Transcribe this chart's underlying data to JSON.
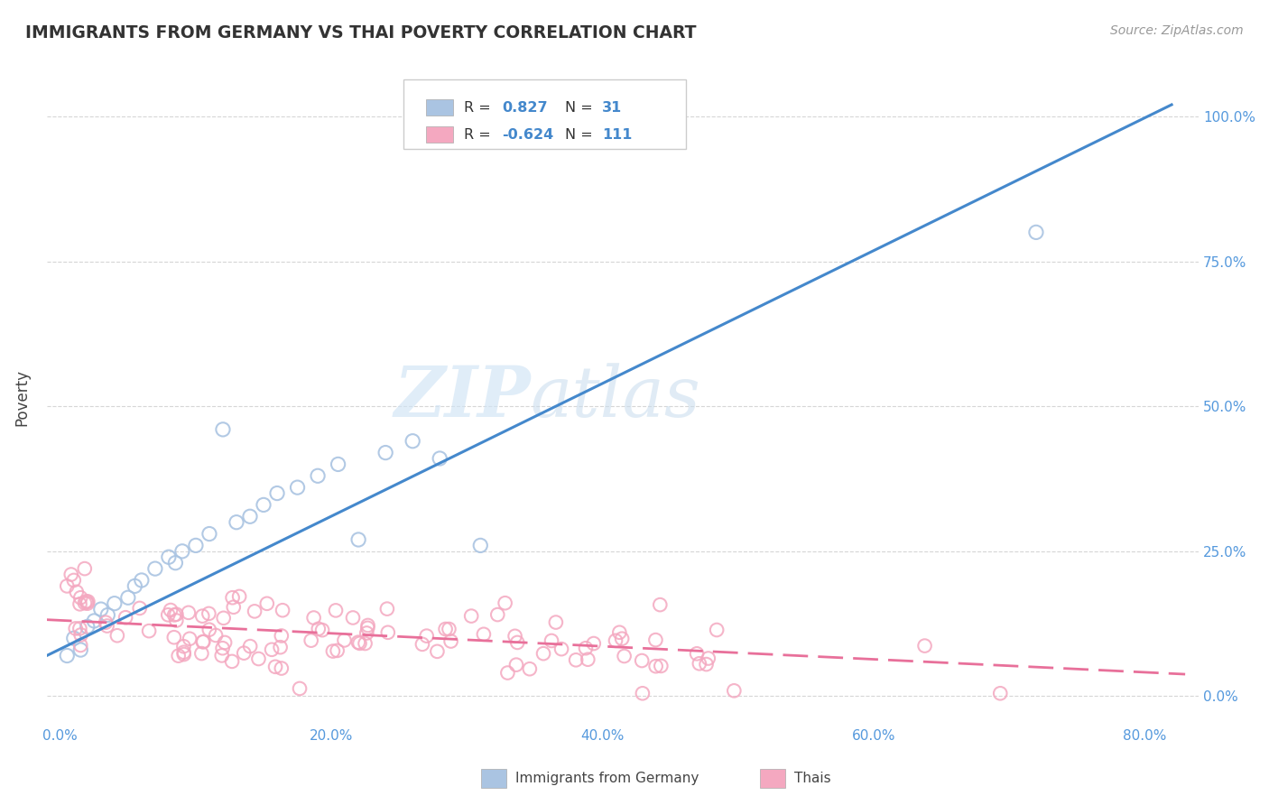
{
  "title": "IMMIGRANTS FROM GERMANY VS THAI POVERTY CORRELATION CHART",
  "source": "Source: ZipAtlas.com",
  "xlim": [
    -0.01,
    0.84
  ],
  "ylim": [
    -0.05,
    1.08
  ],
  "xtick_vals": [
    0.0,
    0.2,
    0.4,
    0.6,
    0.8
  ],
  "xtick_labels": [
    "0.0%",
    "20.0%",
    "40.0%",
    "60.0%",
    "80.0%"
  ],
  "ytick_vals": [
    0.0,
    0.25,
    0.5,
    0.75,
    1.0
  ],
  "ytick_labels": [
    "0.0%",
    "25.0%",
    "50.0%",
    "75.0%",
    "100.0%"
  ],
  "series1_color": "#aac4e2",
  "series2_color": "#f4a8c0",
  "line1_color": "#4488cc",
  "line2_color": "#e8709a",
  "tick_color": "#5599dd",
  "watermark_zip": "ZIP",
  "watermark_atlas": "atlas",
  "series1_name": "Immigrants from Germany",
  "series2_name": "Thais",
  "series1_R": 0.827,
  "series1_N": 31,
  "series2_R": -0.624,
  "series2_N": 111,
  "line1_x0": -0.01,
  "line1_y0": 0.07,
  "line1_x1": 0.82,
  "line1_y1": 1.02,
  "line2_x0": -0.01,
  "line2_y0": 0.132,
  "line2_x1": 0.83,
  "line2_y1": 0.038,
  "background_color": "#ffffff",
  "grid_color": "#cccccc"
}
